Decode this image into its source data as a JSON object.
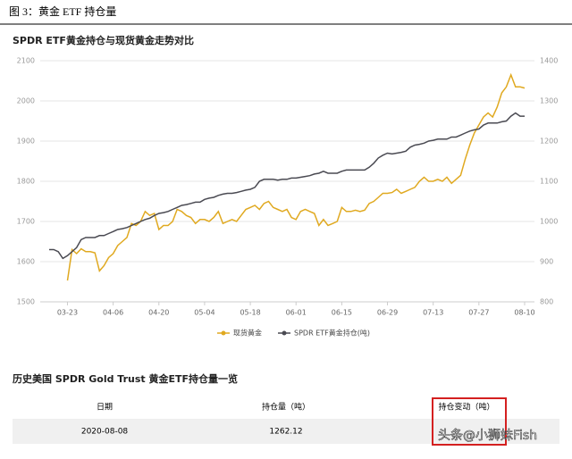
{
  "header": {
    "title": "图 3：黄金 ETF 持仓量"
  },
  "chart_data": {
    "type": "line",
    "title": "SPDR ETF黄金持仓与现货黄金走势对比",
    "categories": [
      null,
      null,
      null,
      null,
      "03-23",
      null,
      null,
      null,
      null,
      null,
      null,
      null,
      null,
      null,
      "04-06",
      null,
      null,
      null,
      null,
      null,
      null,
      null,
      null,
      null,
      "04-20",
      null,
      null,
      null,
      null,
      null,
      null,
      null,
      null,
      null,
      "05-04",
      null,
      null,
      null,
      null,
      null,
      null,
      null,
      null,
      null,
      "05-18",
      null,
      null,
      null,
      null,
      null,
      null,
      null,
      null,
      null,
      "06-01",
      null,
      null,
      null,
      null,
      null,
      null,
      null,
      null,
      null,
      "06-15",
      null,
      null,
      null,
      null,
      null,
      null,
      null,
      null,
      null,
      "06-29",
      null,
      null,
      null,
      null,
      null,
      null,
      null,
      null,
      null,
      "07-13",
      null,
      null,
      null,
      null,
      null,
      null,
      null,
      null,
      null,
      "07-27",
      null,
      null,
      null,
      null,
      null,
      null,
      null,
      null,
      null,
      "08-10"
    ],
    "series": [
      {
        "name": "现货黄金",
        "color": "#e0a920",
        "axis": "y",
        "values": [
          null,
          null,
          null,
          null,
          1553,
          1630,
          1620,
          1632,
          1625,
          1625,
          1622,
          1577,
          1590,
          1610,
          1620,
          1640,
          1650,
          1660,
          1695,
          1690,
          1700,
          1725,
          1715,
          1720,
          1680,
          1690,
          1690,
          1700,
          1730,
          1725,
          1715,
          1710,
          1695,
          1705,
          1705,
          1700,
          1710,
          1725,
          1695,
          1700,
          1705,
          1700,
          1715,
          1730,
          1735,
          1740,
          1730,
          1745,
          1750,
          1735,
          1730,
          1725,
          1730,
          1710,
          1705,
          1725,
          1730,
          1725,
          1720,
          1690,
          1705,
          1690,
          1695,
          1700,
          1735,
          1725,
          1725,
          1728,
          1725,
          1728,
          1745,
          1750,
          1760,
          1770,
          1770,
          1772,
          1780,
          1770,
          1775,
          1780,
          1785,
          1800,
          1810,
          1800,
          1800,
          1805,
          1800,
          1810,
          1795,
          1805,
          1815,
          1855,
          1890,
          1920,
          1940,
          1960,
          1970,
          1960,
          1985,
          2020,
          2035,
          2065,
          2035,
          2035,
          2032
        ]
      },
      {
        "name": "SPDR ETF黄金持仓(吨)",
        "color": "#4a4a52",
        "axis": "y2",
        "values": [
          930,
          930,
          925,
          908,
          915,
          925,
          935,
          955,
          960,
          960,
          960,
          965,
          965,
          970,
          975,
          980,
          982,
          985,
          990,
          995,
          1000,
          1005,
          1008,
          1015,
          1020,
          1022,
          1025,
          1030,
          1035,
          1040,
          1042,
          1045,
          1048,
          1048,
          1055,
          1058,
          1060,
          1065,
          1068,
          1070,
          1070,
          1072,
          1075,
          1078,
          1080,
          1085,
          1100,
          1105,
          1105,
          1105,
          1103,
          1105,
          1105,
          1108,
          1108,
          1110,
          1112,
          1114,
          1118,
          1120,
          1125,
          1120,
          1120,
          1120,
          1125,
          1128,
          1128,
          1128,
          1128,
          1128,
          1135,
          1145,
          1158,
          1165,
          1170,
          1168,
          1170,
          1172,
          1175,
          1185,
          1190,
          1192,
          1195,
          1200,
          1202,
          1205,
          1205,
          1205,
          1210,
          1210,
          1215,
          1220,
          1225,
          1228,
          1230,
          1240,
          1245,
          1245,
          1245,
          1248,
          1250,
          1262,
          1270,
          1262,
          1262
        ]
      }
    ],
    "ylim": [
      1500,
      2100
    ],
    "yticks": [
      1500,
      1600,
      1700,
      1800,
      1900,
      2000,
      2100
    ],
    "y2lim": [
      800,
      1400
    ],
    "y2ticks": [
      800,
      900,
      1000,
      1100,
      1200,
      1300,
      1400
    ],
    "grid": true,
    "legend": "bottom"
  },
  "table": {
    "title": "历史美国 SPDR Gold Trust 黄金ETF持仓量一览",
    "columns": [
      "日期",
      "持仓量（吨）",
      "持仓变动（吨）"
    ],
    "rows": [
      [
        "2020-08-08",
        "1262.12"
      ]
    ]
  },
  "watermark": "头条@小狮妹Fish"
}
